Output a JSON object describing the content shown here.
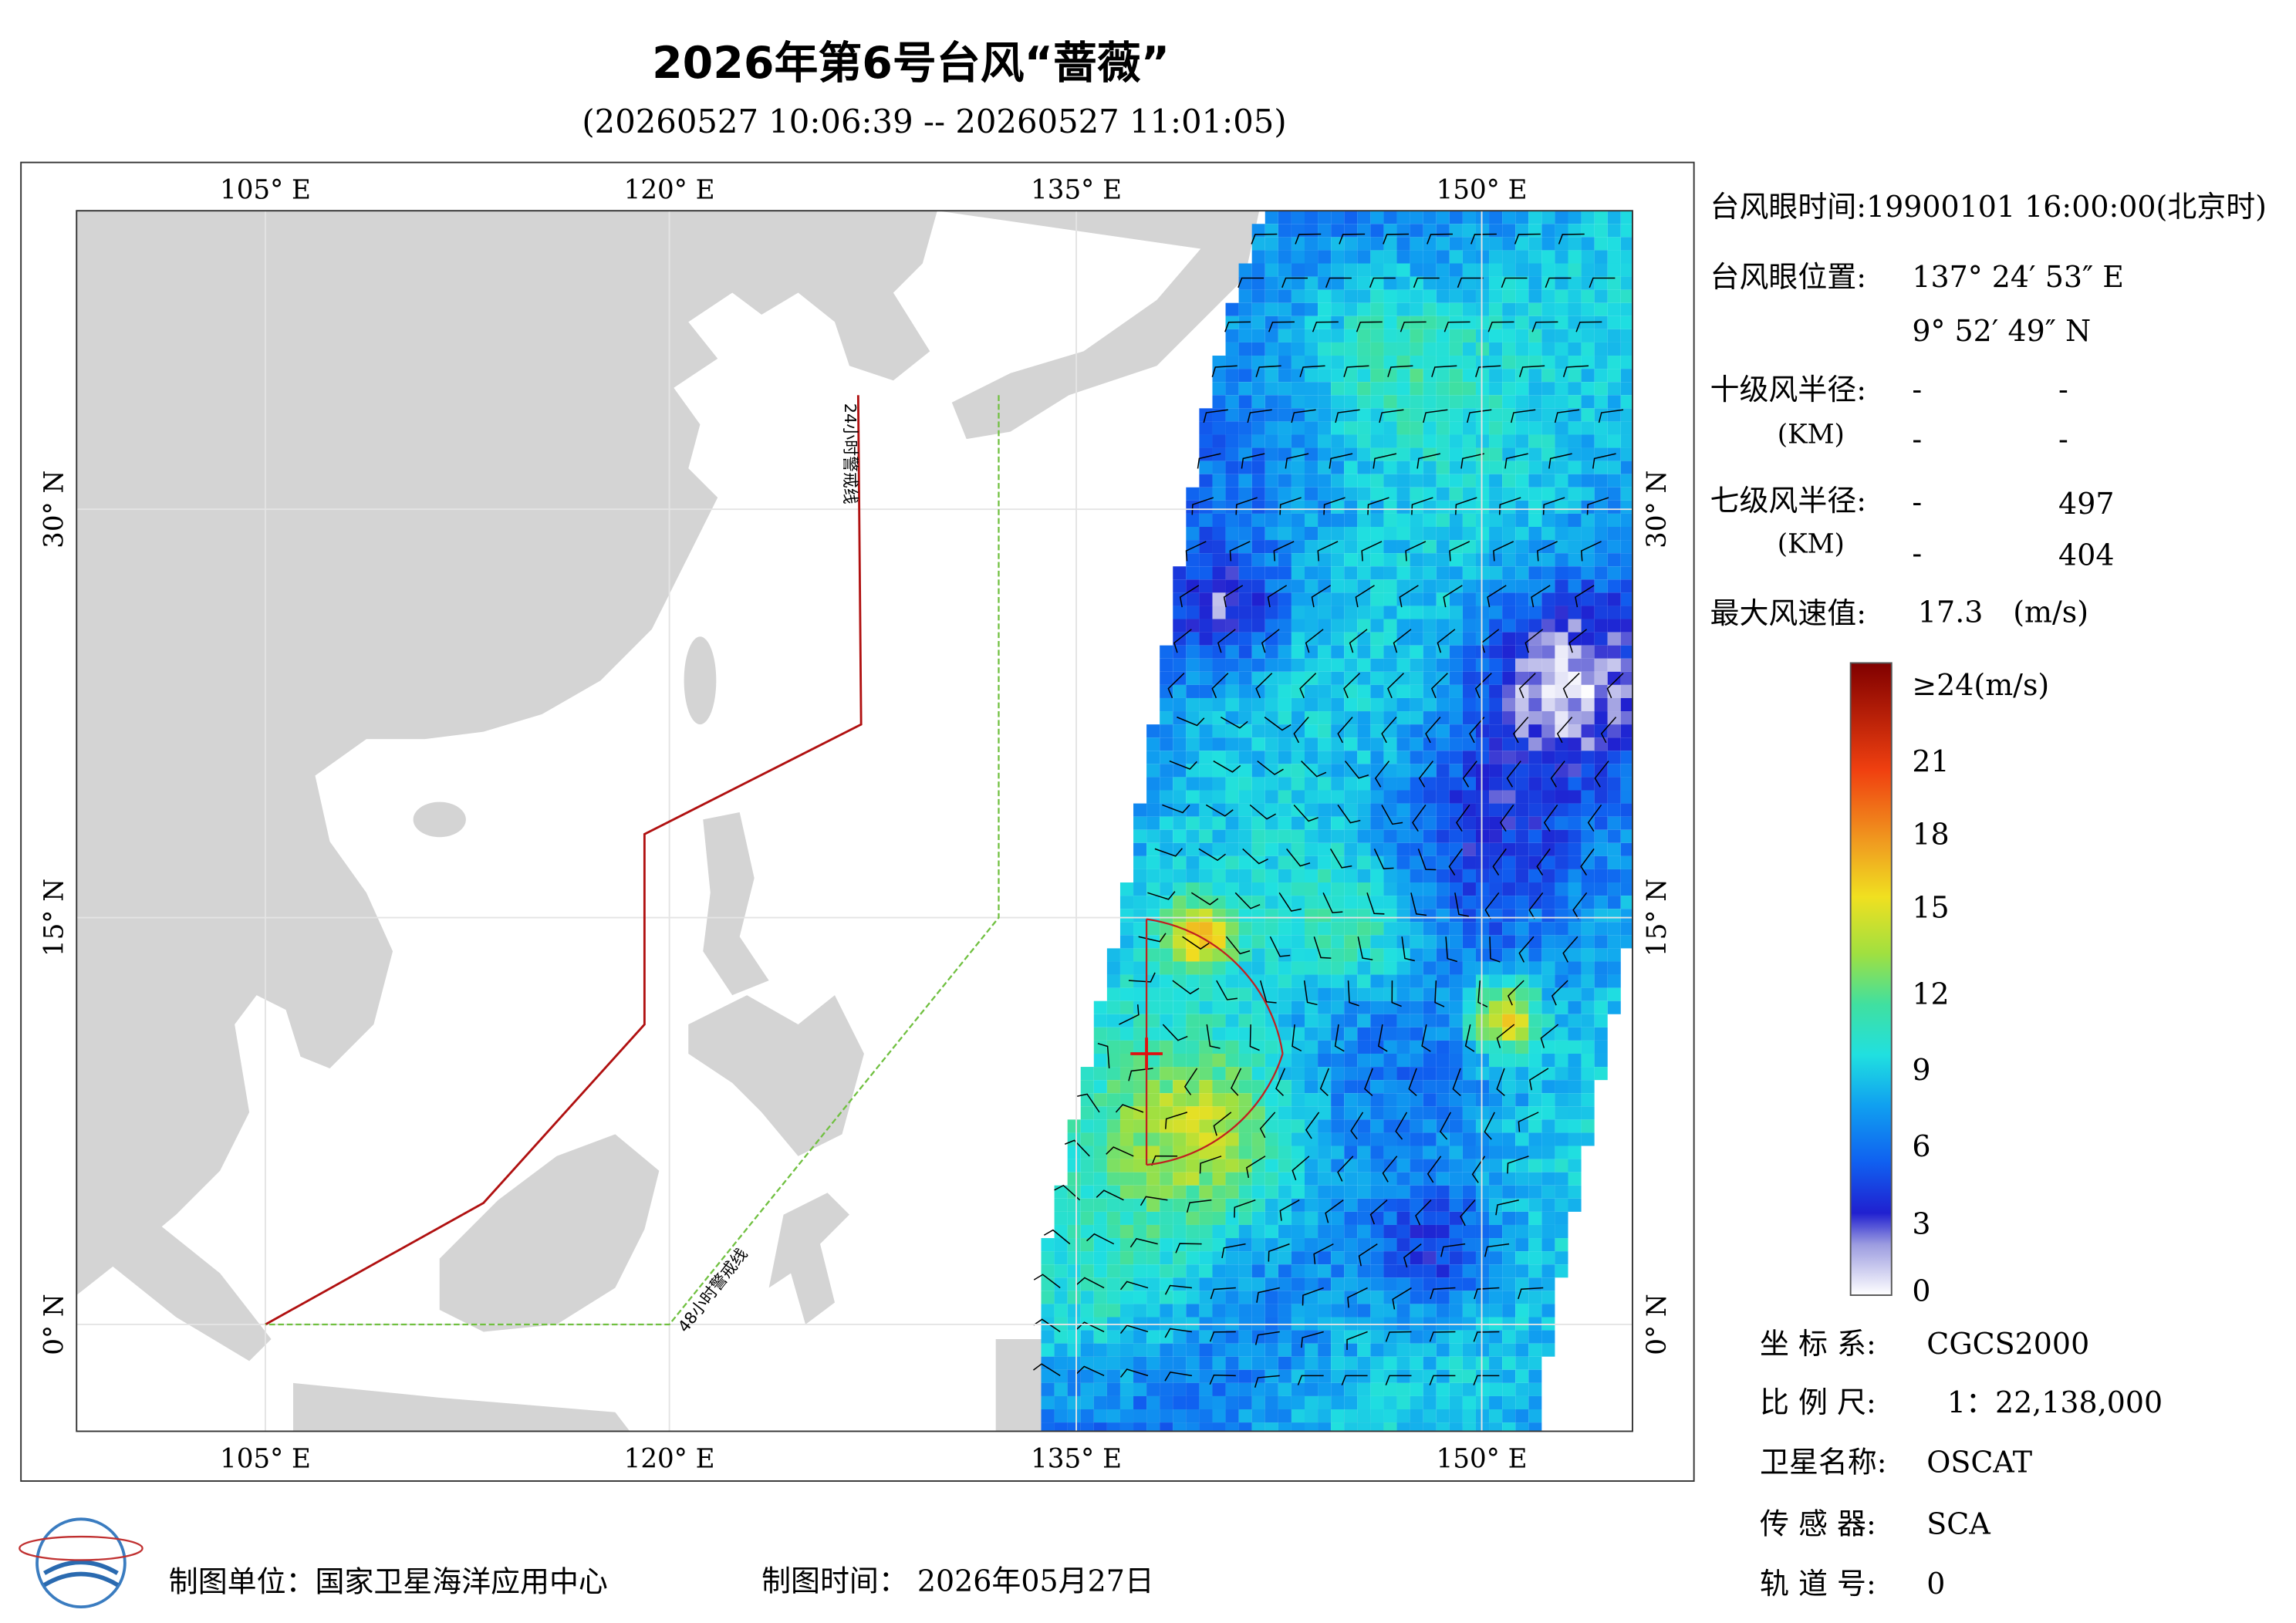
{
  "header": {
    "title": "2026年第6号台风“蔷薇”",
    "subtitle": "(20260527 10:06:39 -- 20260527 11:01:05)"
  },
  "map": {
    "lon_labels": [
      "105° E",
      "120° E",
      "135° E",
      "150° E"
    ],
    "lat_labels": [
      "0° N",
      "15° N",
      "30° N"
    ],
    "warning_lines": [
      "24小时警戒线",
      "48小时警戒线"
    ]
  },
  "info": {
    "eye_time": "台风眼时间:19900101 16:00:00(北京时)",
    "eye_position": {
      "label": "台风眼位置:",
      "lon": "137° 24′ 53″ E",
      "lat": "9° 52′ 49″ N"
    },
    "radius_10": {
      "label": "十级风半径:",
      "unit": "(KM)",
      "values": [
        [
          "-",
          "-"
        ],
        [
          "-",
          "-"
        ]
      ]
    },
    "radius_7": {
      "label": "七级风半径:",
      "unit": "(KM)",
      "values": [
        [
          "-",
          "497"
        ],
        [
          "-",
          "404"
        ]
      ]
    },
    "max_wind": {
      "label": "最大风速值:",
      "value": "17.3",
      "unit": "(m/s)"
    }
  },
  "colorbar": {
    "labels": [
      "≥24(m/s)",
      "21",
      "18",
      "15",
      "12",
      "9",
      "6",
      "3",
      "0"
    ]
  },
  "meta": [
    {
      "label": "坐 标 系:",
      "value": "CGCS2000"
    },
    {
      "label": "比 例 尺:",
      "value": "1：22,138,000"
    },
    {
      "label": "卫星名称:",
      "value": "OSCAT"
    },
    {
      "label": "传 感 器:",
      "value": "SCA"
    },
    {
      "label": "轨 道 号:",
      "value": "0"
    }
  ],
  "footer": {
    "unit": "制图单位：国家卫星海洋应用中心",
    "time": "制图时间： 2026年05月27日"
  }
}
